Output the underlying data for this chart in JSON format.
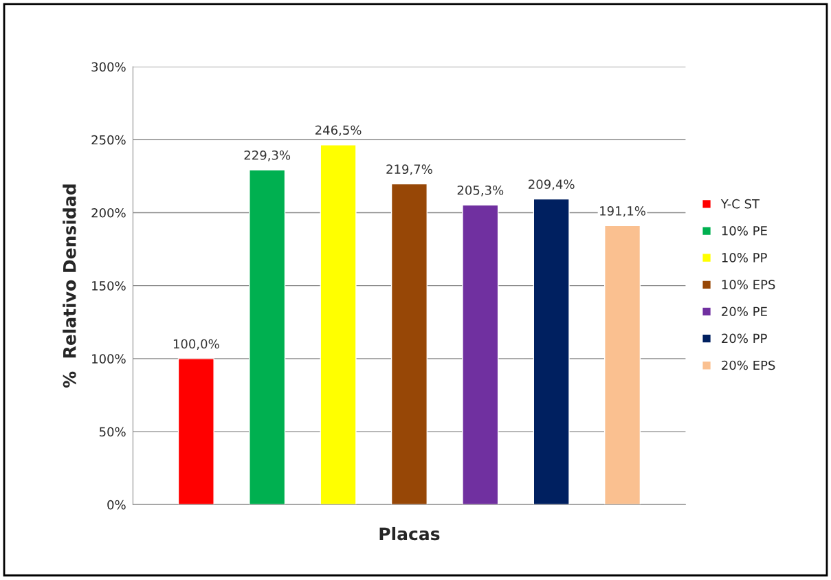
{
  "chart_data": {
    "type": "bar",
    "xlabel": "Placas",
    "ylabel": "%  Relativo Densidad",
    "categories": [
      null
    ],
    "series": [
      {
        "name": "Y-C ST",
        "color": "#ff0000",
        "values": [
          100.0
        ],
        "value_labels": [
          "100,0%"
        ]
      },
      {
        "name": "10% PE",
        "color": "#00b050",
        "values": [
          229.3
        ],
        "value_labels": [
          "229,3%"
        ]
      },
      {
        "name": "10% PP",
        "color": "#ffff00",
        "values": [
          246.5
        ],
        "value_labels": [
          "246,5%"
        ]
      },
      {
        "name": "10% EPS",
        "color": "#974706",
        "values": [
          219.7
        ],
        "value_labels": [
          "219,7%"
        ]
      },
      {
        "name": "20% PE",
        "color": "#7030a0",
        "values": [
          205.3
        ],
        "value_labels": [
          "205,3%"
        ]
      },
      {
        "name": "20% PP",
        "color": "#002060",
        "values": [
          209.4
        ],
        "value_labels": [
          "209,4%"
        ]
      },
      {
        "name": "20% EPS",
        "color": "#fac090",
        "values": [
          191.1
        ],
        "value_labels": [
          "191,1%"
        ]
      }
    ],
    "ylim": [
      0,
      300
    ],
    "yticks": [
      {
        "value": 0,
        "label": "0%"
      },
      {
        "value": 50,
        "label": "50%"
      },
      {
        "value": 100,
        "label": "100%"
      },
      {
        "value": 150,
        "label": "150%"
      },
      {
        "value": 200,
        "label": "200%"
      },
      {
        "value": 250,
        "label": "250%"
      },
      {
        "value": 300,
        "label": "300%"
      }
    ],
    "grid": "y",
    "legend": "right"
  }
}
